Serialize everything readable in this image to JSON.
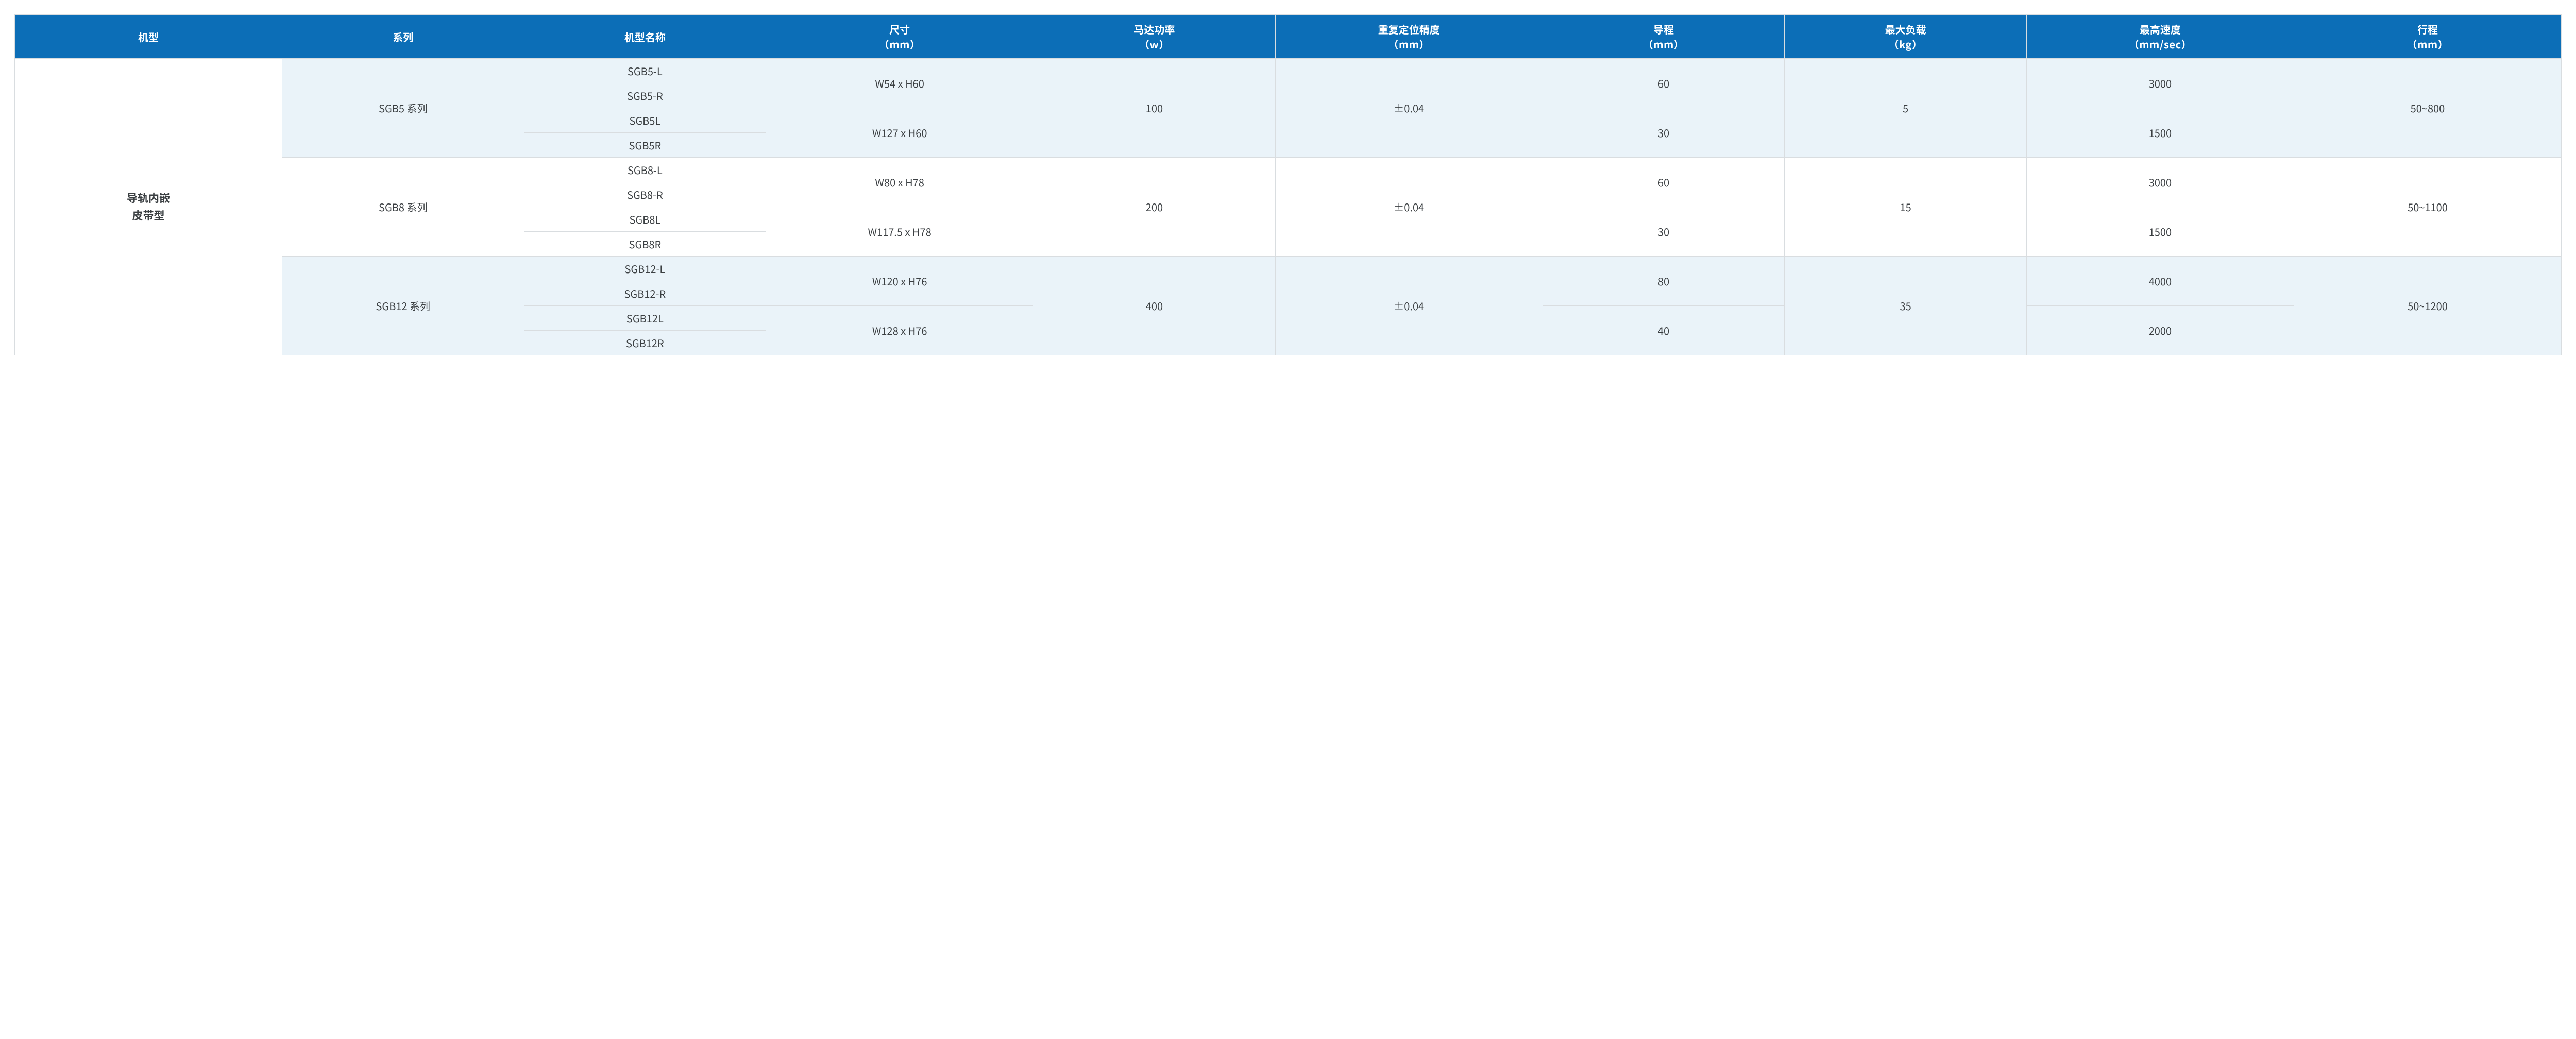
{
  "style": {
    "header_bg": "#0c6eb7",
    "header_fg": "#ffffff",
    "tint_bg": "#eaf3f9",
    "plain_bg": "#ffffff",
    "border_color": "#d9dde0",
    "text_color": "#3b3f42",
    "font_family": "Microsoft YaHei / PingFang SC / Noto Sans CJK SC",
    "header_fontsize_pt": 15,
    "body_fontsize_pt": 15,
    "header_font_weight": 700,
    "column_widths_pct": [
      10.5,
      9.5,
      9.5,
      10.5,
      9.5,
      10.5,
      9.5,
      9.5,
      10.5,
      10.5
    ]
  },
  "table": {
    "type": "table",
    "columns": [
      {
        "key": "type",
        "label": "机型",
        "sub": null
      },
      {
        "key": "series",
        "label": "系列",
        "sub": null
      },
      {
        "key": "model",
        "label": "机型名称",
        "sub": null
      },
      {
        "key": "dim",
        "label": "尺寸",
        "sub": "（mm）"
      },
      {
        "key": "power",
        "label": "马达功率",
        "sub": "（w）"
      },
      {
        "key": "accuracy",
        "label": "重复定位精度",
        "sub": "（mm）"
      },
      {
        "key": "lead",
        "label": "导程",
        "sub": "（mm）"
      },
      {
        "key": "load",
        "label": "最大负载",
        "sub": "（kg）"
      },
      {
        "key": "speed",
        "label": "最高速度",
        "sub": "（mm/sec）"
      },
      {
        "key": "stroke",
        "label": "行程",
        "sub": "（mm）"
      }
    ],
    "type_group": {
      "label_line1": "导轨内嵌",
      "label_line2": "皮带型",
      "row_span": 12
    },
    "series": [
      {
        "key": "sgb5",
        "label": "SGB5 系列",
        "tint": true,
        "models": [
          "SGB5-L",
          "SGB5-R",
          "SGB5L",
          "SGB5R"
        ],
        "dims": [
          {
            "value": "W54 x H60",
            "row_span": 2
          },
          {
            "value": "W127 x H60",
            "row_span": 2
          }
        ],
        "power": "100",
        "accuracy": "±0.04",
        "load": "5",
        "stroke": "50~800",
        "lead_speed": [
          {
            "lead": "60",
            "speed": "3000",
            "row_span": 2
          },
          {
            "lead": "30",
            "speed": "1500",
            "row_span": 2
          }
        ]
      },
      {
        "key": "sgb8",
        "label": "SGB8 系列",
        "tint": false,
        "models": [
          "SGB8-L",
          "SGB8-R",
          "SGB8L",
          "SGB8R"
        ],
        "dims": [
          {
            "value": "W80 x H78",
            "row_span": 2
          },
          {
            "value": "W117.5 x H78",
            "row_span": 2
          }
        ],
        "power": "200",
        "accuracy": "±0.04",
        "load": "15",
        "stroke": "50~1100",
        "lead_speed": [
          {
            "lead": "60",
            "speed": "3000",
            "row_span": 2
          },
          {
            "lead": "30",
            "speed": "1500",
            "row_span": 2
          }
        ]
      },
      {
        "key": "sgb12",
        "label": "SGB12 系列",
        "tint": true,
        "models": [
          "SGB12-L",
          "SGB12-R",
          "SGB12L",
          "SGB12R"
        ],
        "dims": [
          {
            "value": "W120 x H76",
            "row_span": 2
          },
          {
            "value": "W128 x H76",
            "row_span": 2
          }
        ],
        "power": "400",
        "accuracy": "±0.04",
        "load": "35",
        "stroke": "50~1200",
        "lead_speed": [
          {
            "lead": "80",
            "speed": "4000",
            "row_span": 2
          },
          {
            "lead": "40",
            "speed": "2000",
            "row_span": 2
          }
        ]
      }
    ]
  }
}
